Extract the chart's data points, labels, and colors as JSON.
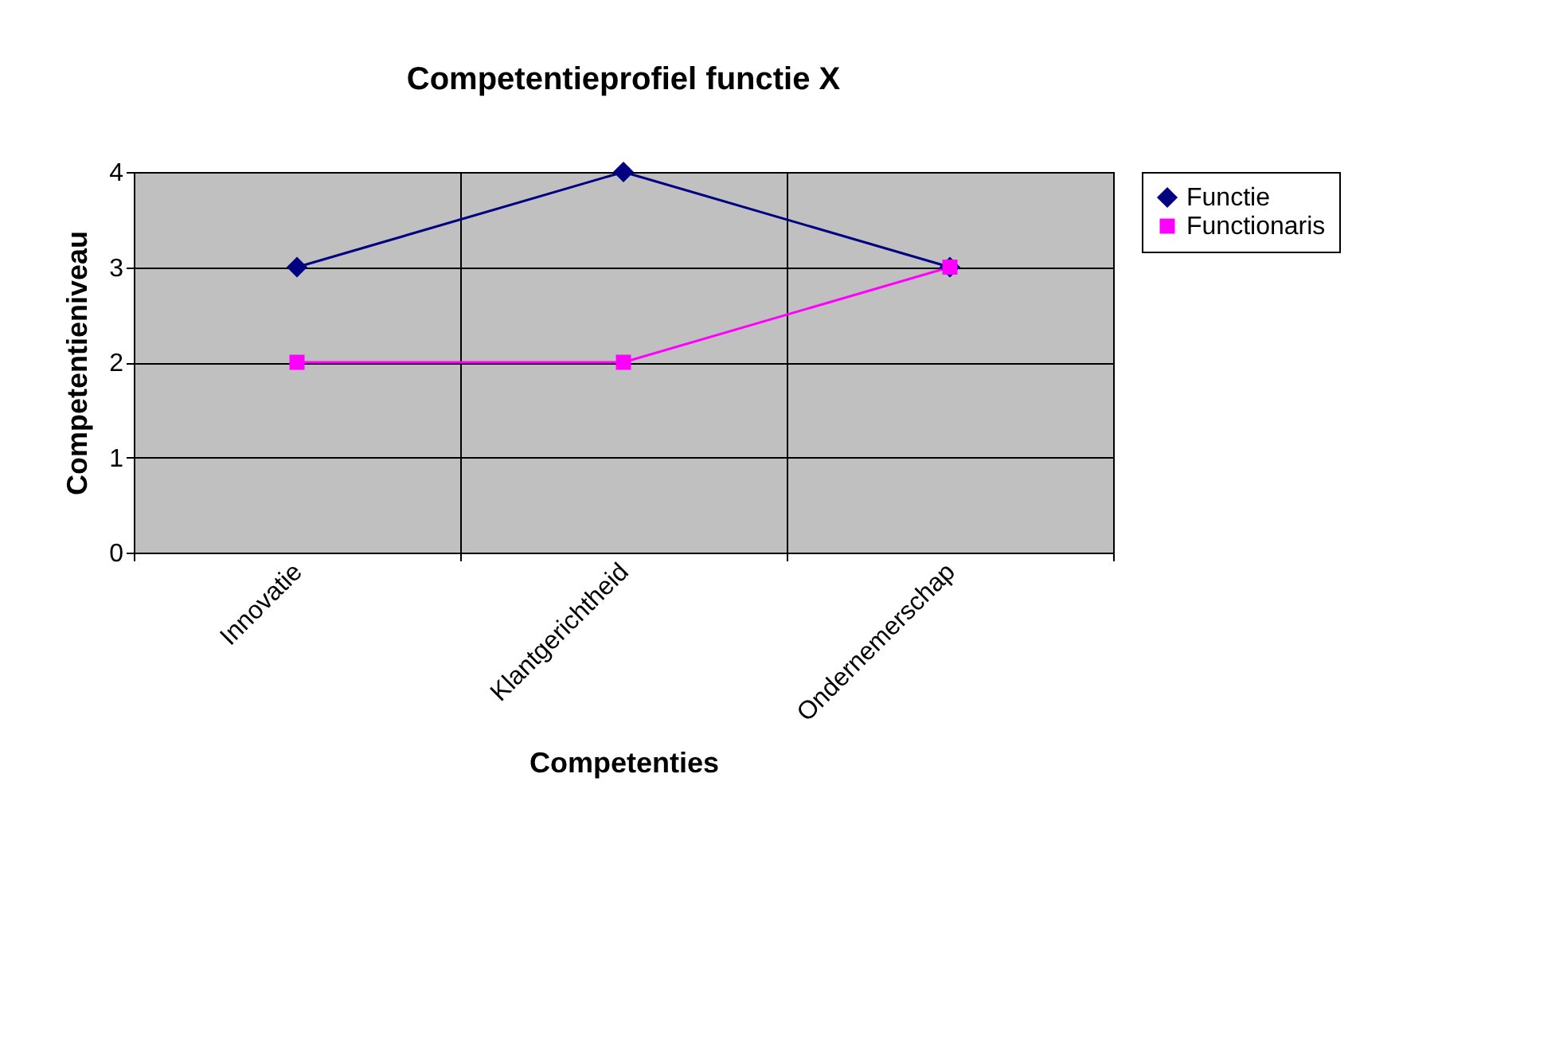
{
  "chart_data": {
    "type": "line",
    "title": "Competentieprofiel functie X",
    "xlabel": "Competenties",
    "ylabel": "Competentieniveau",
    "categories": [
      "Innovatie",
      "Klantgerichtheid",
      "Ondernemerschap"
    ],
    "series": [
      {
        "name": "Functie",
        "color": "#000080",
        "marker": "diamond",
        "values": [
          3,
          4,
          3
        ]
      },
      {
        "name": "Functionaris",
        "color": "#ff00ff",
        "marker": "square",
        "values": [
          2,
          2,
          3
        ]
      }
    ],
    "ylim": [
      0,
      4
    ],
    "yticks": [
      0,
      1,
      2,
      3,
      4
    ],
    "grid": true,
    "legend": "right"
  }
}
